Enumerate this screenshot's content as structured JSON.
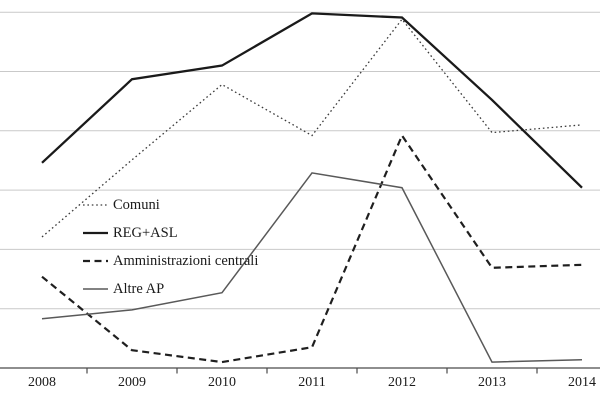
{
  "chart_data": {
    "type": "line",
    "title": "",
    "xlabel": "",
    "ylabel": "",
    "x": [
      "2008",
      "2009",
      "2010",
      "2011",
      "2012",
      "2013",
      "2014"
    ],
    "y_axis": {
      "labels_visible": false,
      "note": "y axis has no tick labels; values estimated in gridline units (baseline = 0, one gridline interval = 1)",
      "ylim": [
        0,
        6.2
      ],
      "gridlines_at": [
        1,
        2,
        3,
        4,
        5,
        6
      ]
    },
    "grid": "horizontal",
    "legend_position": "inside-center-left",
    "series": [
      {
        "name": "Comuni",
        "style": "dotted",
        "color": "#3a3a3a",
        "values": [
          2.21,
          3.51,
          4.78,
          3.92,
          5.88,
          3.97,
          4.1
        ]
      },
      {
        "name": "REG+ASL",
        "style": "solid-thick",
        "color": "#1a1a1a",
        "values": [
          3.46,
          4.87,
          5.1,
          5.98,
          5.91,
          4.52,
          3.04
        ]
      },
      {
        "name": "Amministrazioni centrali",
        "style": "dashed",
        "color": "#1f1f1f",
        "values": [
          1.54,
          0.3,
          0.1,
          0.35,
          3.92,
          1.69,
          1.74
        ]
      },
      {
        "name": "Altre AP",
        "style": "solid-thin",
        "color": "#595959",
        "values": [
          0.83,
          0.98,
          1.27,
          3.29,
          3.04,
          0.1,
          0.14
        ]
      }
    ],
    "colors": {
      "background": "#ffffff",
      "gridline": "#c9c9c9",
      "axis": "#4a4a4a",
      "text": "#1a1a1a"
    }
  }
}
